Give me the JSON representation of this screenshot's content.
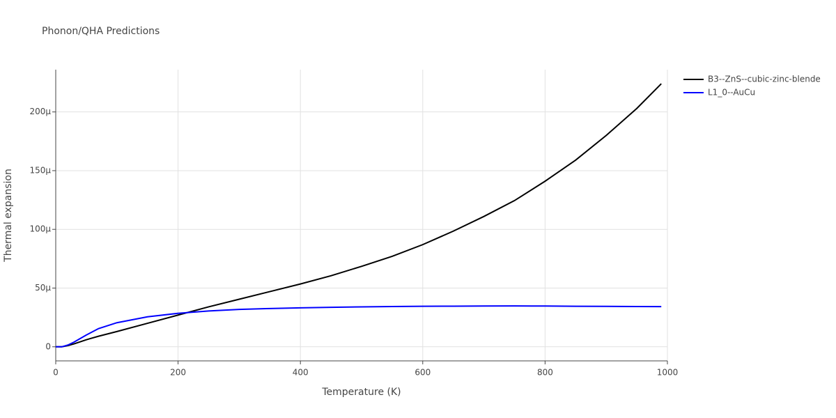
{
  "chart_data": {
    "type": "line",
    "title": "Phonon/QHA Predictions",
    "x_label": "Temperature (K)",
    "y_label": "Thermal expansion",
    "x": [
      0,
      10,
      20,
      30,
      50,
      70,
      100,
      150,
      200,
      250,
      300,
      350,
      400,
      450,
      500,
      550,
      600,
      650,
      700,
      750,
      800,
      850,
      900,
      950,
      990
    ],
    "series": [
      {
        "name": "B3--ZnS--cubic-zinc-blende",
        "color": "#000000",
        "values": [
          0,
          0,
          1e-06,
          2.5e-06,
          6e-06,
          9e-06,
          1.3e-05,
          2e-05,
          2.7e-05,
          3.4e-05,
          4.05e-05,
          4.7e-05,
          5.35e-05,
          6.05e-05,
          6.85e-05,
          7.7e-05,
          8.7e-05,
          9.85e-05,
          0.000111,
          0.0001245,
          0.000141,
          0.000159,
          0.00018,
          0.000203,
          0.000224
        ]
      },
      {
        "name": "L1_0--AuCu",
        "color": "#0000ff",
        "values": [
          0,
          0,
          1.5e-06,
          4e-06,
          1e-05,
          1.55e-05,
          2.05e-05,
          2.55e-05,
          2.85e-05,
          3.05e-05,
          3.18e-05,
          3.26e-05,
          3.32e-05,
          3.36e-05,
          3.4e-05,
          3.43e-05,
          3.45e-05,
          3.46e-05,
          3.47e-05,
          3.48e-05,
          3.47e-05,
          3.45e-05,
          3.44e-05,
          3.43e-05,
          3.42e-05
        ]
      }
    ],
    "xlim": [
      0,
      1000
    ],
    "xticks": [
      0,
      200,
      400,
      600,
      800,
      1000
    ],
    "ylim": [
      -1.2e-05,
      0.000236
    ],
    "yticks": [
      0,
      {
        "value": 5e-05,
        "label": "50μ"
      },
      {
        "value": 0.0001,
        "label": "100μ"
      },
      {
        "value": 0.00015,
        "label": "150μ"
      },
      {
        "value": 0.0002,
        "label": "200μ"
      }
    ],
    "grid": true
  }
}
